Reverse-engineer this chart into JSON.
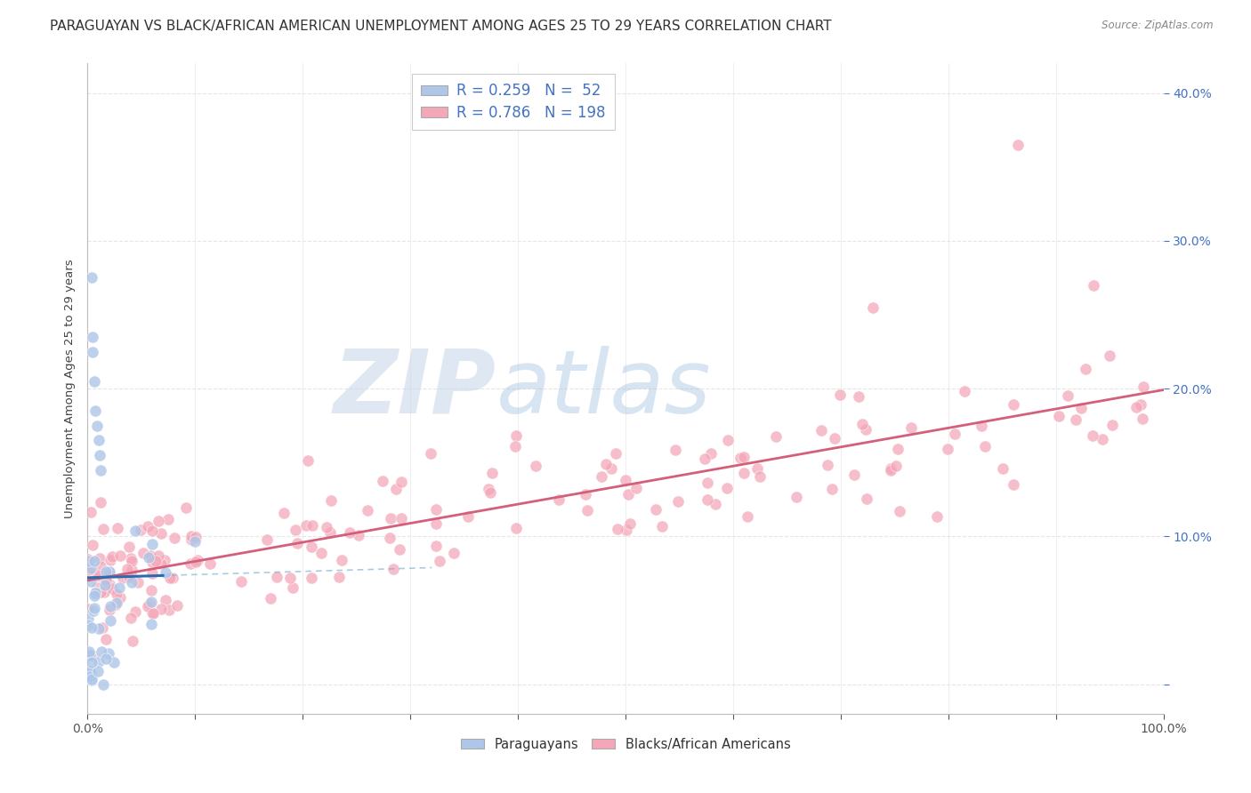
{
  "title": "PARAGUAYAN VS BLACK/AFRICAN AMERICAN UNEMPLOYMENT AMONG AGES 25 TO 29 YEARS CORRELATION CHART",
  "source": "Source: ZipAtlas.com",
  "ylabel": "Unemployment Among Ages 25 to 29 years",
  "xlim": [
    0,
    1.0
  ],
  "ylim": [
    -0.02,
    0.42
  ],
  "xticks": [
    0.0,
    0.1,
    0.2,
    0.3,
    0.4,
    0.5,
    0.6,
    0.7,
    0.8,
    0.9,
    1.0
  ],
  "xtick_labels": [
    "0.0%",
    "",
    "",
    "",
    "",
    "",
    "",
    "",
    "",
    "",
    "100.0%"
  ],
  "yticks": [
    0.0,
    0.1,
    0.2,
    0.3,
    0.4
  ],
  "ytick_labels": [
    "",
    "10.0%",
    "20.0%",
    "30.0%",
    "40.0%"
  ],
  "blue_color": "#aec6e8",
  "pink_color": "#f4a7b9",
  "blue_line_color": "#2b6cb0",
  "pink_line_color": "#d45f7a",
  "blue_dash_color": "#7ab0d8",
  "blue_R": 0.259,
  "blue_N": 52,
  "pink_R": 0.786,
  "pink_N": 198,
  "background_color": "#ffffff",
  "grid_color": "#e0e0e0",
  "title_fontsize": 11,
  "axis_fontsize": 10,
  "tick_color_y": "#4472c4",
  "tick_color_x": "#555555"
}
